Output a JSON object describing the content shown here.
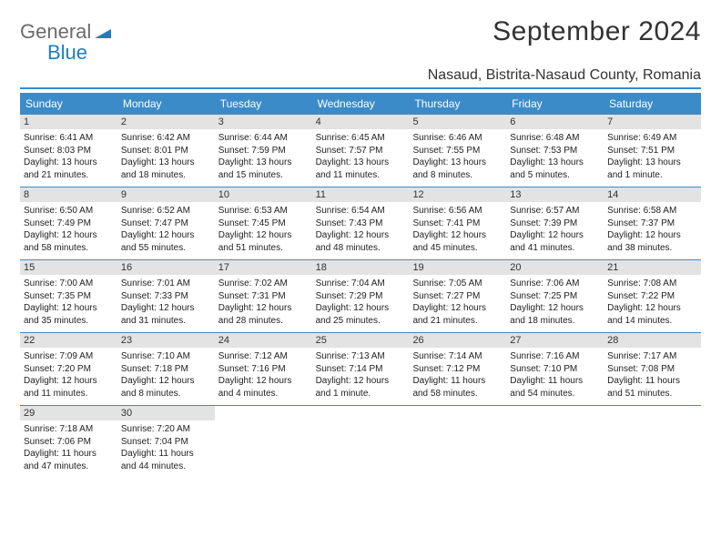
{
  "logo": {
    "text1": "General",
    "text2": "Blue"
  },
  "title": "September 2024",
  "location": "Nasaud, Bistrita-Nasaud County, Romania",
  "colors": {
    "header_bg": "#3b8bc9",
    "daynum_bg": "#e3e3e3",
    "border": "#3b8bc9",
    "logo_gray": "#6b6b6b",
    "logo_blue": "#1c7fbf"
  },
  "day_names": [
    "Sunday",
    "Monday",
    "Tuesday",
    "Wednesday",
    "Thursday",
    "Friday",
    "Saturday"
  ],
  "weeks": [
    [
      {
        "n": "1",
        "sr": "Sunrise: 6:41 AM",
        "ss": "Sunset: 8:03 PM",
        "dl": "Daylight: 13 hours and 21 minutes."
      },
      {
        "n": "2",
        "sr": "Sunrise: 6:42 AM",
        "ss": "Sunset: 8:01 PM",
        "dl": "Daylight: 13 hours and 18 minutes."
      },
      {
        "n": "3",
        "sr": "Sunrise: 6:44 AM",
        "ss": "Sunset: 7:59 PM",
        "dl": "Daylight: 13 hours and 15 minutes."
      },
      {
        "n": "4",
        "sr": "Sunrise: 6:45 AM",
        "ss": "Sunset: 7:57 PM",
        "dl": "Daylight: 13 hours and 11 minutes."
      },
      {
        "n": "5",
        "sr": "Sunrise: 6:46 AM",
        "ss": "Sunset: 7:55 PM",
        "dl": "Daylight: 13 hours and 8 minutes."
      },
      {
        "n": "6",
        "sr": "Sunrise: 6:48 AM",
        "ss": "Sunset: 7:53 PM",
        "dl": "Daylight: 13 hours and 5 minutes."
      },
      {
        "n": "7",
        "sr": "Sunrise: 6:49 AM",
        "ss": "Sunset: 7:51 PM",
        "dl": "Daylight: 13 hours and 1 minute."
      }
    ],
    [
      {
        "n": "8",
        "sr": "Sunrise: 6:50 AM",
        "ss": "Sunset: 7:49 PM",
        "dl": "Daylight: 12 hours and 58 minutes."
      },
      {
        "n": "9",
        "sr": "Sunrise: 6:52 AM",
        "ss": "Sunset: 7:47 PM",
        "dl": "Daylight: 12 hours and 55 minutes."
      },
      {
        "n": "10",
        "sr": "Sunrise: 6:53 AM",
        "ss": "Sunset: 7:45 PM",
        "dl": "Daylight: 12 hours and 51 minutes."
      },
      {
        "n": "11",
        "sr": "Sunrise: 6:54 AM",
        "ss": "Sunset: 7:43 PM",
        "dl": "Daylight: 12 hours and 48 minutes."
      },
      {
        "n": "12",
        "sr": "Sunrise: 6:56 AM",
        "ss": "Sunset: 7:41 PM",
        "dl": "Daylight: 12 hours and 45 minutes."
      },
      {
        "n": "13",
        "sr": "Sunrise: 6:57 AM",
        "ss": "Sunset: 7:39 PM",
        "dl": "Daylight: 12 hours and 41 minutes."
      },
      {
        "n": "14",
        "sr": "Sunrise: 6:58 AM",
        "ss": "Sunset: 7:37 PM",
        "dl": "Daylight: 12 hours and 38 minutes."
      }
    ],
    [
      {
        "n": "15",
        "sr": "Sunrise: 7:00 AM",
        "ss": "Sunset: 7:35 PM",
        "dl": "Daylight: 12 hours and 35 minutes."
      },
      {
        "n": "16",
        "sr": "Sunrise: 7:01 AM",
        "ss": "Sunset: 7:33 PM",
        "dl": "Daylight: 12 hours and 31 minutes."
      },
      {
        "n": "17",
        "sr": "Sunrise: 7:02 AM",
        "ss": "Sunset: 7:31 PM",
        "dl": "Daylight: 12 hours and 28 minutes."
      },
      {
        "n": "18",
        "sr": "Sunrise: 7:04 AM",
        "ss": "Sunset: 7:29 PM",
        "dl": "Daylight: 12 hours and 25 minutes."
      },
      {
        "n": "19",
        "sr": "Sunrise: 7:05 AM",
        "ss": "Sunset: 7:27 PM",
        "dl": "Daylight: 12 hours and 21 minutes."
      },
      {
        "n": "20",
        "sr": "Sunrise: 7:06 AM",
        "ss": "Sunset: 7:25 PM",
        "dl": "Daylight: 12 hours and 18 minutes."
      },
      {
        "n": "21",
        "sr": "Sunrise: 7:08 AM",
        "ss": "Sunset: 7:22 PM",
        "dl": "Daylight: 12 hours and 14 minutes."
      }
    ],
    [
      {
        "n": "22",
        "sr": "Sunrise: 7:09 AM",
        "ss": "Sunset: 7:20 PM",
        "dl": "Daylight: 12 hours and 11 minutes."
      },
      {
        "n": "23",
        "sr": "Sunrise: 7:10 AM",
        "ss": "Sunset: 7:18 PM",
        "dl": "Daylight: 12 hours and 8 minutes."
      },
      {
        "n": "24",
        "sr": "Sunrise: 7:12 AM",
        "ss": "Sunset: 7:16 PM",
        "dl": "Daylight: 12 hours and 4 minutes."
      },
      {
        "n": "25",
        "sr": "Sunrise: 7:13 AM",
        "ss": "Sunset: 7:14 PM",
        "dl": "Daylight: 12 hours and 1 minute."
      },
      {
        "n": "26",
        "sr": "Sunrise: 7:14 AM",
        "ss": "Sunset: 7:12 PM",
        "dl": "Daylight: 11 hours and 58 minutes."
      },
      {
        "n": "27",
        "sr": "Sunrise: 7:16 AM",
        "ss": "Sunset: 7:10 PM",
        "dl": "Daylight: 11 hours and 54 minutes."
      },
      {
        "n": "28",
        "sr": "Sunrise: 7:17 AM",
        "ss": "Sunset: 7:08 PM",
        "dl": "Daylight: 11 hours and 51 minutes."
      }
    ],
    [
      {
        "n": "29",
        "sr": "Sunrise: 7:18 AM",
        "ss": "Sunset: 7:06 PM",
        "dl": "Daylight: 11 hours and 47 minutes."
      },
      {
        "n": "30",
        "sr": "Sunrise: 7:20 AM",
        "ss": "Sunset: 7:04 PM",
        "dl": "Daylight: 11 hours and 44 minutes."
      },
      null,
      null,
      null,
      null,
      null
    ]
  ]
}
